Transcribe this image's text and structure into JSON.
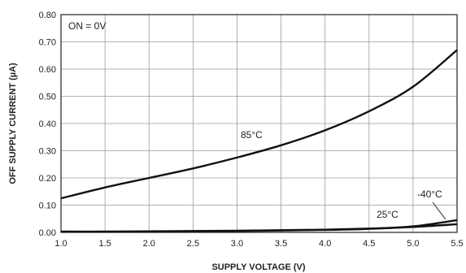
{
  "chart_data": {
    "type": "line",
    "xlabel": "SUPPLY VOLTAGE (V)",
    "ylabel": "OFF SUPPLY CURRENT (µA)",
    "xlim": [
      1.0,
      5.5
    ],
    "ylim": [
      0.0,
      0.8
    ],
    "xticks": [
      "1.0",
      "1.5",
      "2.0",
      "2.5",
      "3.0",
      "3.5",
      "4.0",
      "4.5",
      "5.0",
      "5.5"
    ],
    "yticks": [
      "0.00",
      "0.10",
      "0.20",
      "0.30",
      "0.40",
      "0.50",
      "0.60",
      "0.70",
      "0.80"
    ],
    "grid": true,
    "legend_text": "ON =  0V",
    "series": [
      {
        "name": "85°C",
        "x": [
          1.0,
          1.5,
          2.0,
          2.5,
          3.0,
          3.5,
          4.0,
          4.5,
          5.0,
          5.5
        ],
        "y": [
          0.125,
          0.165,
          0.2,
          0.235,
          0.275,
          0.32,
          0.375,
          0.445,
          0.535,
          0.67
        ]
      },
      {
        "name": "25°C",
        "x": [
          1.0,
          1.5,
          2.0,
          2.5,
          3.0,
          3.5,
          4.0,
          4.5,
          5.0,
          5.5
        ],
        "y": [
          0.003,
          0.003,
          0.004,
          0.005,
          0.006,
          0.008,
          0.01,
          0.014,
          0.02,
          0.03
        ]
      },
      {
        "name": "-40°C",
        "x": [
          1.0,
          1.5,
          2.0,
          2.5,
          3.0,
          3.5,
          4.0,
          4.5,
          5.0,
          5.5
        ],
        "y": [
          0.002,
          0.002,
          0.003,
          0.004,
          0.005,
          0.007,
          0.009,
          0.013,
          0.022,
          0.045
        ]
      }
    ]
  }
}
